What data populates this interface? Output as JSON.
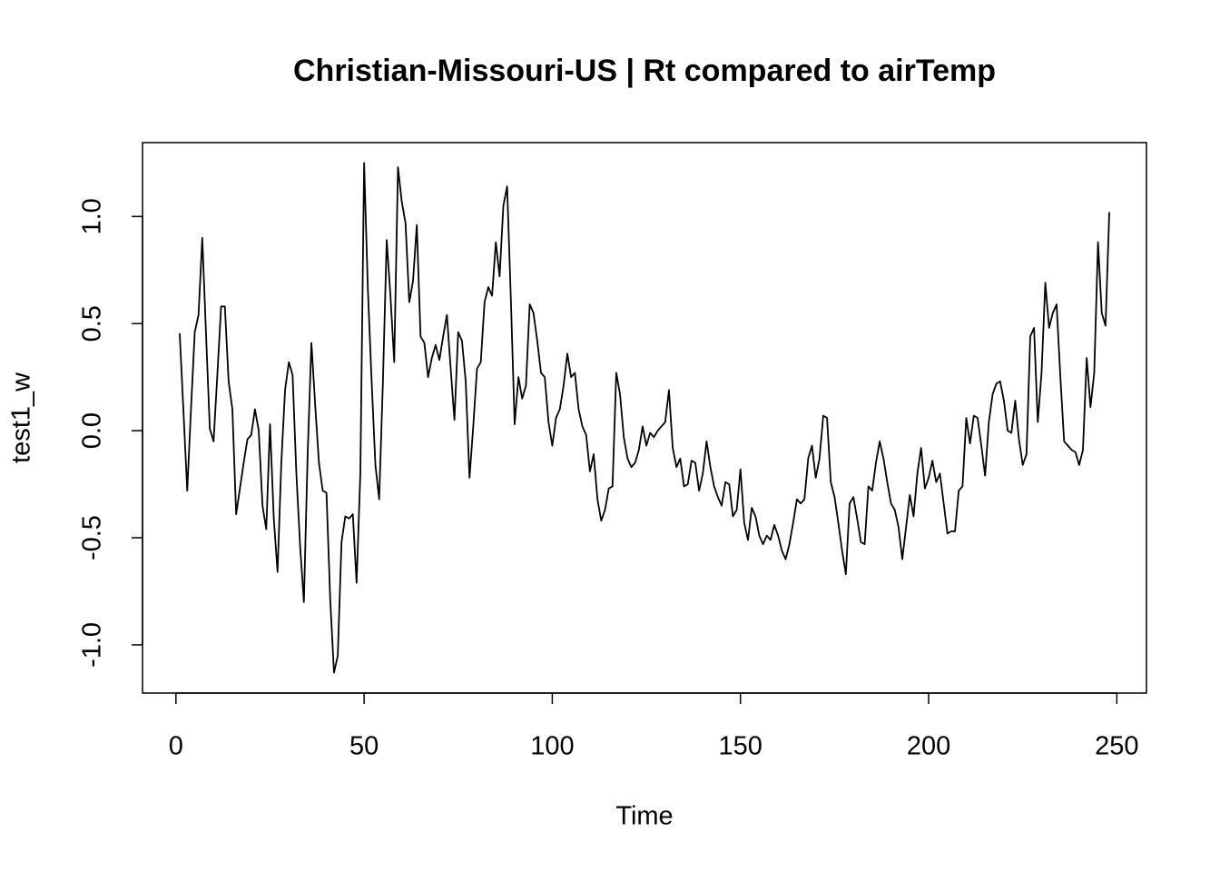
{
  "chart_data": {
    "type": "line",
    "title": "Christian-Missouri-US | Rt compared to airTemp",
    "xlabel": "Time",
    "ylabel": "test1_w",
    "xlim": [
      -8.88,
      257.88
    ],
    "ylim": [
      -1.225,
      1.345
    ],
    "xticks": [
      0,
      50,
      100,
      150,
      200,
      250
    ],
    "yticks": [
      {
        "value": -1,
        "label": "-1.0"
      },
      {
        "value": -0.5,
        "label": "-0.5"
      },
      {
        "value": 0,
        "label": "0.0"
      },
      {
        "value": 0.5,
        "label": "0.5"
      },
      {
        "value": 1,
        "label": "1.0"
      }
    ],
    "x": [
      1,
      2,
      3,
      4,
      5,
      6,
      7,
      8,
      9,
      10,
      11,
      12,
      13,
      14,
      15,
      16,
      17,
      18,
      19,
      20,
      21,
      22,
      23,
      24,
      25,
      26,
      27,
      28,
      29,
      30,
      31,
      32,
      33,
      34,
      35,
      36,
      37,
      38,
      39,
      40,
      41,
      42,
      43,
      44,
      45,
      46,
      47,
      48,
      49,
      50,
      51,
      52,
      53,
      54,
      55,
      56,
      57,
      58,
      59,
      60,
      61,
      62,
      63,
      64,
      65,
      66,
      67,
      68,
      69,
      70,
      71,
      72,
      73,
      74,
      75,
      76,
      77,
      78,
      79,
      80,
      81,
      82,
      83,
      84,
      85,
      86,
      87,
      88,
      89,
      90,
      91,
      92,
      93,
      94,
      95,
      96,
      97,
      98,
      99,
      100,
      101,
      102,
      103,
      104,
      105,
      106,
      107,
      108,
      109,
      110,
      111,
      112,
      113,
      114,
      115,
      116,
      117,
      118,
      119,
      120,
      121,
      122,
      123,
      124,
      125,
      126,
      127,
      128,
      129,
      130,
      131,
      132,
      133,
      134,
      135,
      136,
      137,
      138,
      139,
      140,
      141,
      142,
      143,
      144,
      145,
      146,
      147,
      148,
      149,
      150,
      151,
      152,
      153,
      154,
      155,
      156,
      157,
      158,
      159,
      160,
      161,
      162,
      163,
      164,
      165,
      166,
      167,
      168,
      169,
      170,
      171,
      172,
      173,
      174,
      175,
      176,
      177,
      178,
      179,
      180,
      181,
      182,
      183,
      184,
      185,
      186,
      187,
      188,
      189,
      190,
      191,
      192,
      193,
      194,
      195,
      196,
      197,
      198,
      199,
      200,
      201,
      202,
      203,
      204,
      205,
      206,
      207,
      208,
      209,
      210,
      211,
      212,
      213,
      214,
      215,
      216,
      217,
      218,
      219,
      220,
      221,
      222,
      223,
      224,
      225,
      226,
      227,
      228,
      229,
      230,
      231,
      232,
      233,
      234,
      235,
      236,
      237,
      238,
      239,
      240,
      241,
      242,
      243,
      244,
      245,
      246,
      247,
      248
    ],
    "series": [
      {
        "name": "test1_w",
        "color": "#000000",
        "values": [
          0.455,
          0.09,
          -0.28,
          0.1,
          0.46,
          0.54,
          0.9,
          0.45,
          0.01,
          -0.05,
          0.26,
          0.58,
          0.58,
          0.23,
          0.1,
          -0.39,
          -0.27,
          -0.15,
          -0.04,
          -0.02,
          0.1,
          0.0,
          -0.35,
          -0.46,
          0.03,
          -0.41,
          -0.66,
          -0.15,
          0.19,
          0.32,
          0.26,
          -0.2,
          -0.54,
          -0.8,
          -0.11,
          0.41,
          0.12,
          -0.15,
          -0.28,
          -0.29,
          -0.79,
          -1.13,
          -1.05,
          -0.52,
          -0.4,
          -0.41,
          -0.39,
          -0.71,
          -0.2,
          1.25,
          0.66,
          0.23,
          -0.16,
          -0.32,
          0.23,
          0.89,
          0.63,
          0.32,
          1.23,
          1.07,
          0.97,
          0.6,
          0.7,
          0.96,
          0.44,
          0.41,
          0.25,
          0.34,
          0.4,
          0.33,
          0.44,
          0.54,
          0.29,
          0.05,
          0.46,
          0.42,
          0.23,
          -0.22,
          0.02,
          0.29,
          0.32,
          0.6,
          0.67,
          0.63,
          0.88,
          0.72,
          1.05,
          1.14,
          0.61,
          0.03,
          0.25,
          0.15,
          0.21,
          0.59,
          0.55,
          0.42,
          0.27,
          0.25,
          0.04,
          -0.07,
          0.06,
          0.1,
          0.21,
          0.36,
          0.25,
          0.27,
          0.1,
          0.02,
          -0.02,
          -0.19,
          -0.11,
          -0.32,
          -0.42,
          -0.37,
          -0.27,
          -0.26,
          0.27,
          0.17,
          -0.03,
          -0.13,
          -0.17,
          -0.15,
          -0.09,
          0.02,
          -0.07,
          -0.01,
          -0.03,
          0.0,
          0.02,
          0.04,
          0.19,
          -0.08,
          -0.17,
          -0.13,
          -0.26,
          -0.25,
          -0.14,
          -0.15,
          -0.28,
          -0.2,
          -0.05,
          -0.17,
          -0.26,
          -0.31,
          -0.35,
          -0.24,
          -0.25,
          -0.4,
          -0.37,
          -0.18,
          -0.43,
          -0.51,
          -0.36,
          -0.4,
          -0.49,
          -0.53,
          -0.49,
          -0.51,
          -0.44,
          -0.49,
          -0.56,
          -0.6,
          -0.53,
          -0.43,
          -0.32,
          -0.34,
          -0.32,
          -0.13,
          -0.07,
          -0.22,
          -0.13,
          0.07,
          0.06,
          -0.24,
          -0.31,
          -0.43,
          -0.56,
          -0.67,
          -0.34,
          -0.31,
          -0.41,
          -0.52,
          -0.53,
          -0.26,
          -0.28,
          -0.15,
          -0.05,
          -0.13,
          -0.24,
          -0.34,
          -0.37,
          -0.45,
          -0.6,
          -0.45,
          -0.3,
          -0.4,
          -0.2,
          -0.08,
          -0.27,
          -0.22,
          -0.14,
          -0.24,
          -0.2,
          -0.34,
          -0.48,
          -0.47,
          -0.47,
          -0.28,
          -0.26,
          0.06,
          -0.06,
          0.07,
          0.06,
          -0.07,
          -0.21,
          0.04,
          0.17,
          0.22,
          0.23,
          0.14,
          0.0,
          -0.01,
          0.14,
          -0.04,
          -0.16,
          -0.11,
          0.44,
          0.48,
          0.04,
          0.27,
          0.69,
          0.48,
          0.55,
          0.59,
          0.25,
          -0.05,
          -0.07,
          -0.09,
          -0.1,
          -0.16,
          -0.09,
          0.34,
          0.11,
          0.27,
          0.88,
          0.55,
          0.49,
          1.02
        ]
      }
    ]
  }
}
